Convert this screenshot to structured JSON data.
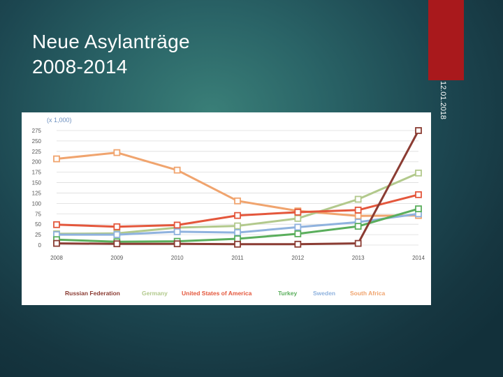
{
  "slide": {
    "title_line1": "Neue Asylanträge",
    "title_line2": "2008-2014",
    "date_vertical": "12.01.2018",
    "accent_color": "#a9191c"
  },
  "chart_data": {
    "type": "line",
    "unit_label": "(x 1,000)",
    "x": [
      "2008",
      "2009",
      "2010",
      "2011",
      "2012",
      "2013",
      "2014"
    ],
    "yticks": [
      0,
      25,
      50,
      75,
      100,
      125,
      150,
      175,
      200,
      225,
      250,
      275
    ],
    "ylim": [
      0,
      275
    ],
    "grid": true,
    "legend_position": "bottom",
    "series": [
      {
        "name": "South Africa",
        "color": "#f0a46e",
        "values": [
          207,
          222,
          180,
          106,
          82,
          70,
          71
        ]
      },
      {
        "name": "Germany",
        "color": "#b2c98c",
        "values": [
          27,
          28,
          42,
          46,
          64,
          110,
          173
        ]
      },
      {
        "name": "Sweden",
        "color": "#8fb2de",
        "values": [
          25,
          25,
          32,
          30,
          43,
          55,
          75
        ]
      },
      {
        "name": "Turkey",
        "color": "#5aae5c",
        "values": [
          13,
          8,
          9,
          15,
          27,
          45,
          87
        ]
      },
      {
        "name": "United States of America",
        "color": "#e4573c",
        "values": [
          49,
          44,
          48,
          71,
          79,
          84,
          121
        ]
      },
      {
        "name": "Russian Federation",
        "color": "#8b3c33",
        "values": [
          4,
          3,
          3,
          2,
          2,
          4,
          275
        ]
      }
    ],
    "legend_order": [
      "Russian Federation",
      "Germany",
      "United States of America",
      "Turkey",
      "Sweden",
      "South Africa"
    ]
  }
}
